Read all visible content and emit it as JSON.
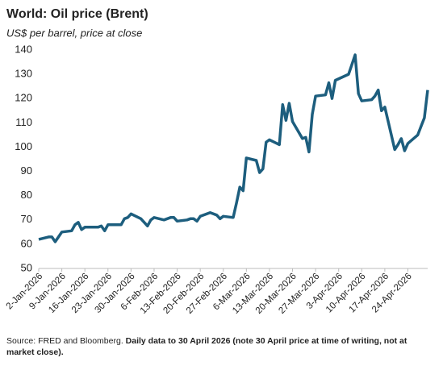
{
  "chart_data": {
    "type": "line",
    "title": "World: Oil price (Brent)",
    "subtitle": "US$ per barrel, price at close",
    "source": "Source: FRED and Bloomberg.",
    "note": "Daily data to 30 April 2026 (note 30 April price at time of writing, not at market close).",
    "x": [
      "2026-01-02",
      "2026-01-05",
      "2026-01-06",
      "2026-01-07",
      "2026-01-08",
      "2026-01-09",
      "2026-01-12",
      "2026-01-13",
      "2026-01-14",
      "2026-01-15",
      "2026-01-16",
      "2026-01-19",
      "2026-01-20",
      "2026-01-21",
      "2026-01-22",
      "2026-01-23",
      "2026-01-26",
      "2026-01-27",
      "2026-01-28",
      "2026-01-29",
      "2026-01-30",
      "2026-02-02",
      "2026-02-03",
      "2026-02-04",
      "2026-02-05",
      "2026-02-06",
      "2026-02-09",
      "2026-02-10",
      "2026-02-11",
      "2026-02-12",
      "2026-02-13",
      "2026-02-16",
      "2026-02-17",
      "2026-02-18",
      "2026-02-19",
      "2026-02-20",
      "2026-02-23",
      "2026-02-24",
      "2026-02-25",
      "2026-02-26",
      "2026-02-27",
      "2026-03-02",
      "2026-03-03",
      "2026-03-04",
      "2026-03-05",
      "2026-03-06",
      "2026-03-09",
      "2026-03-10",
      "2026-03-11",
      "2026-03-12",
      "2026-03-13",
      "2026-03-16",
      "2026-03-17",
      "2026-03-18",
      "2026-03-19",
      "2026-03-20",
      "2026-03-23",
      "2026-03-24",
      "2026-03-25",
      "2026-03-26",
      "2026-03-27",
      "2026-03-30",
      "2026-03-31",
      "2026-04-01",
      "2026-04-02",
      "2026-04-06",
      "2026-04-07",
      "2026-04-08",
      "2026-04-09",
      "2026-04-10",
      "2026-04-13",
      "2026-04-14",
      "2026-04-15",
      "2026-04-16",
      "2026-04-17",
      "2026-04-20",
      "2026-04-21",
      "2026-04-22",
      "2026-04-23",
      "2026-04-24",
      "2026-04-27",
      "2026-04-28",
      "2026-04-29",
      "2026-04-30"
    ],
    "series": [
      {
        "name": "Brent",
        "color": "#1d5e7e",
        "values": [
          62,
          63,
          63,
          61,
          63,
          65,
          65.5,
          68,
          69,
          66,
          67,
          67,
          67,
          67.5,
          65.5,
          68,
          68,
          68,
          70.5,
          71,
          72.5,
          70.5,
          69,
          67.5,
          70,
          71,
          70,
          70.5,
          71,
          71,
          69.5,
          70,
          70.5,
          70.5,
          69.5,
          71.5,
          73,
          72.5,
          72,
          70.5,
          71.5,
          71,
          77,
          83.5,
          82,
          95.5,
          94.5,
          89.5,
          91,
          102,
          103,
          101,
          117.5,
          111,
          118,
          110.5,
          103.5,
          104,
          98,
          113.5,
          121,
          121.5,
          126.5,
          120,
          127.5,
          130,
          134,
          138,
          122,
          119,
          119.5,
          121,
          123.5,
          115,
          116.5,
          99,
          101,
          103.5,
          98.5,
          101.5,
          105,
          108.5,
          112,
          123.5
        ]
      }
    ],
    "xlim": [
      "2026-01-02",
      "2026-04-30"
    ],
    "xticks": [
      {
        "value": "2026-01-02",
        "label": "2-Jan-2026"
      },
      {
        "value": "2026-01-09",
        "label": "9-Jan-2026"
      },
      {
        "value": "2026-01-16",
        "label": "16-Jan-2026"
      },
      {
        "value": "2026-01-23",
        "label": "23-Jan-2026"
      },
      {
        "value": "2026-01-30",
        "label": "30-Jan-2026"
      },
      {
        "value": "2026-02-06",
        "label": "6-Feb-2026"
      },
      {
        "value": "2026-02-13",
        "label": "13-Feb-2026"
      },
      {
        "value": "2026-02-20",
        "label": "20-Feb-2026"
      },
      {
        "value": "2026-02-27",
        "label": "27-Feb-2026"
      },
      {
        "value": "2026-03-06",
        "label": "6-Mar-2026"
      },
      {
        "value": "2026-03-13",
        "label": "13-Mar-2026"
      },
      {
        "value": "2026-03-20",
        "label": "20-Mar-2026"
      },
      {
        "value": "2026-03-27",
        "label": "27-Mar-2026"
      },
      {
        "value": "2026-04-03",
        "label": "3-Apr-2026"
      },
      {
        "value": "2026-04-10",
        "label": "10-Apr-2026"
      },
      {
        "value": "2026-04-17",
        "label": "17-Apr-2026"
      },
      {
        "value": "2026-04-24",
        "label": "24-Apr-2026"
      }
    ],
    "ylim": [
      50,
      140
    ],
    "yticks": [
      50,
      60,
      70,
      80,
      90,
      100,
      110,
      120,
      130,
      140
    ],
    "grid": false
  }
}
